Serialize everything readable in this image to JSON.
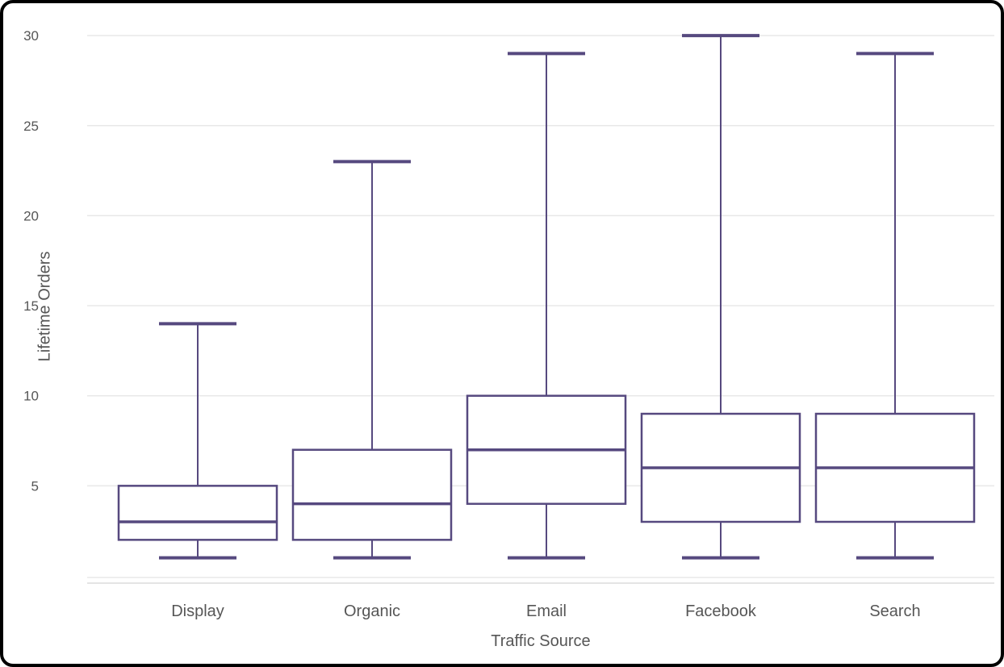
{
  "chart_data": {
    "type": "boxplot",
    "xlabel": "Traffic Source",
    "ylabel": "Lifetime Orders",
    "categories": [
      "Display",
      "Organic",
      "Email",
      "Facebook",
      "Search"
    ],
    "series": [
      {
        "name": "Display",
        "min": 1,
        "q1": 2,
        "median": 3,
        "q3": 5,
        "max": 14
      },
      {
        "name": "Organic",
        "min": 1,
        "q1": 2,
        "median": 4,
        "q3": 7,
        "max": 23
      },
      {
        "name": "Email",
        "min": 1,
        "q1": 4,
        "median": 7,
        "q3": 10,
        "max": 29
      },
      {
        "name": "Facebook",
        "min": 1,
        "q1": 3,
        "median": 6,
        "q3": 9,
        "max": 30
      },
      {
        "name": "Search",
        "min": 1,
        "q1": 3,
        "median": 6,
        "q3": 9,
        "max": 29
      }
    ],
    "yticks": [
      5,
      10,
      15,
      20,
      25,
      30
    ],
    "ylim": [
      0,
      31
    ],
    "grid": true,
    "legend": "none",
    "colors": {
      "box": "#56497f",
      "grid": "#e8e8e8",
      "axis_line": "#dcdcdc",
      "text": "#565656",
      "background": "#ffffff",
      "frame_border": "#000000"
    }
  }
}
